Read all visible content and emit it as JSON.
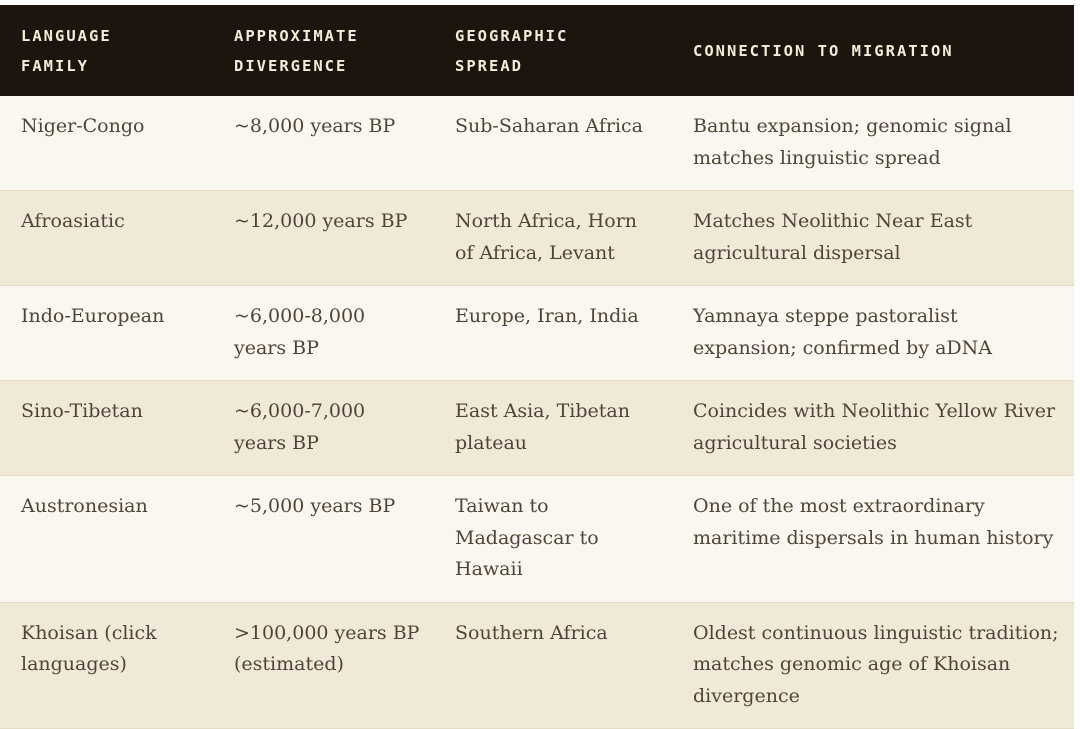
{
  "table": {
    "headers": [
      [
        "LANGUAGE",
        "FAMILY"
      ],
      [
        "APPROXIMATE",
        "DIVERGENCE"
      ],
      [
        "GEOGRAPHIC",
        "SPREAD"
      ],
      [
        "CONNECTION TO MIGRATION"
      ]
    ],
    "rows": [
      [
        "Niger-Congo",
        "~8,000 years BP",
        "Sub-Saharan Africa",
        "Bantu expansion; genomic signal matches linguistic spread"
      ],
      [
        "Afroasiatic",
        "~12,000 years BP",
        "North Africa, Horn of Africa, Levant",
        "Matches Neolithic Near East agricultural dispersal"
      ],
      [
        "Indo-European",
        "~6,000-8,000 years BP",
        "Europe, Iran, India",
        "Yamnaya steppe pastoralist expansion; confirmed by aDNA"
      ],
      [
        "Sino-Tibetan",
        "~6,000-7,000 years BP",
        "East Asia, Tibetan plateau",
        "Coincides with Neolithic Yellow River agricultural societies"
      ],
      [
        "Austronesian",
        "~5,000 years BP",
        "Taiwan to Madagascar to Hawaii",
        "One of the most extraordinary maritime dispersals in human history"
      ],
      [
        "Khoisan (click languages)",
        ">100,000 years BP (estimated)",
        "Southern Africa",
        "Oldest continuous linguistic tradition; matches genomic age of Khoisan divergence"
      ]
    ]
  }
}
